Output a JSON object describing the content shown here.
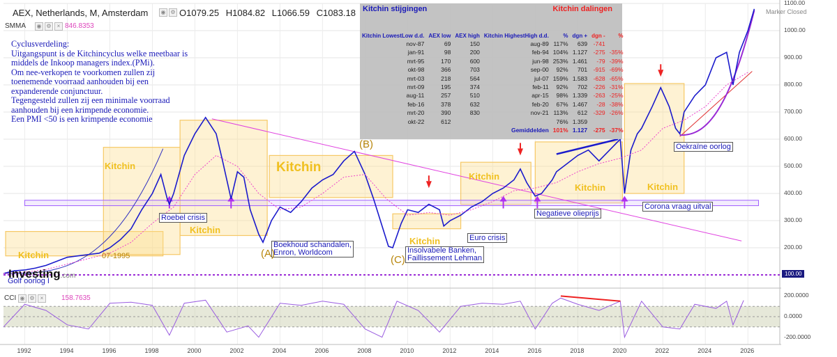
{
  "header": {
    "symbol": "AEX, Netherlands, M, Amsterdam",
    "open": "O1079.25",
    "high": "H1084.82",
    "low": "L1066.59",
    "close": "C1083.18"
  },
  "smma": {
    "label": "SMMA",
    "value": "846.8353"
  },
  "notes": [
    "Cyclusverdeling:",
    "Uitgangspunt is de Kitchincyclus welke meetbaar is",
    "middels de Inkoop managers index.(PMi).",
    "Om nee-verkopen te voorkomen zullen zij",
    "toenemende voorraad aanhouden bij een",
    "expanderende conjunctuur.",
    "Tegengesteld zullen zij een minimale voorraad",
    "aanhouden bij een krimpende economie.",
    "Een PMI <50 is een krimpende economie"
  ],
  "table": {
    "title_left": "Kitchin stijgingen",
    "title_right": "Kitchin dalingen",
    "headers": [
      "Kitchin LowestLow d.d.",
      "AEX low",
      "AEX high",
      "Kitchin HighestHigh d.d.",
      "%",
      "dgn +",
      "dgn -",
      "%"
    ],
    "rows": [
      [
        "nov-87",
        "69",
        "150",
        "aug-89",
        "117%",
        "639",
        "-741",
        ""
      ],
      [
        "jan-91",
        "98",
        "200",
        "feb-94",
        "104%",
        "1.127",
        "-275",
        "-35%"
      ],
      [
        "mrt-95",
        "170",
        "600",
        "jun-98",
        "253%",
        "1.461",
        "-79",
        "-39%"
      ],
      [
        "okt-98",
        "366",
        "703",
        "sep-00",
        "92%",
        "701",
        "-915",
        "-69%"
      ],
      [
        "mrt-03",
        "218",
        "564",
        "jul-07",
        "159%",
        "1.583",
        "-628",
        "-65%"
      ],
      [
        "mrt-09",
        "195",
        "374",
        "feb-11",
        "92%",
        "702",
        "-226",
        "-31%"
      ],
      [
        "aug-11",
        "257",
        "510",
        "apr-15",
        "98%",
        "1.339",
        "-263",
        "-25%"
      ],
      [
        "feb-16",
        "378",
        "632",
        "feb-20",
        "67%",
        "1.467",
        "-28",
        "-38%"
      ],
      [
        "mrt-20",
        "390",
        "830",
        "nov-21",
        "113%",
        "612",
        "-329",
        "-26%"
      ],
      [
        "okt-22",
        "612",
        "",
        "",
        "76%",
        "1.359",
        "",
        ""
      ]
    ],
    "avg": [
      "Gemiddelden",
      "101%",
      "1.127",
      "-275",
      "-37%"
    ]
  },
  "annotations": {
    "k1": "Kitchin",
    "k2": "Kitchin",
    "k3": "Kitchin",
    "k4": "Kitchin",
    "k5": "Kitchin",
    "k6": "Kitchin",
    "k7": "Kitchin",
    "k8": "Kitchin",
    "k9": "Kitchin",
    "roebel": "Roebel crisis",
    "boekhoud1": "Boekhoud schandalen,",
    "boekhoud2": "Enron, Worldcom",
    "insolv1": "Insolvabele Banken,",
    "insolv2": "Faillissement Lehman",
    "euro": "Euro crisis",
    "olie": "Negatieve olieprijs",
    "corona": "Corona vraag uitval",
    "oekraine": "Oekraïne oorlog",
    "golf": "Golf oorlog I",
    "date95": "07-1995",
    "A": "(A)",
    "B": "(B)",
    "C": "(C)"
  },
  "marker": "Marker Closed",
  "tag100": "100.00",
  "logo": "Investing",
  "logo_suffix": ".com",
  "cci": {
    "label": "CCI",
    "value": "158.7635"
  },
  "chart_data": {
    "type": "line",
    "title": "AEX, Netherlands, M, Amsterdam",
    "ylim": [
      100,
      1100
    ],
    "yticks": [
      "1100.00",
      "1000.00",
      "900.00",
      "800.00",
      "700.00",
      "600.00",
      "500.00",
      "400.00",
      "300.00",
      "200.00"
    ],
    "xticks": [
      "1992",
      "1994",
      "1996",
      "1998",
      "2000",
      "2002",
      "2004",
      "2006",
      "2008",
      "2010",
      "2012",
      "2014",
      "2016",
      "2018",
      "2020",
      "2022",
      "2024",
      "2026"
    ],
    "series": [
      {
        "name": "AEX",
        "color": "#1a1acc",
        "points": [
          [
            1991.0,
            105
          ],
          [
            1991.5,
            115
          ],
          [
            1992.0,
            118
          ],
          [
            1992.5,
            125
          ],
          [
            1993.0,
            135
          ],
          [
            1993.5,
            150
          ],
          [
            1994.0,
            165
          ],
          [
            1994.5,
            170
          ],
          [
            1995.0,
            175
          ],
          [
            1995.5,
            180
          ],
          [
            1996.0,
            200
          ],
          [
            1996.5,
            230
          ],
          [
            1997.0,
            270
          ],
          [
            1997.5,
            340
          ],
          [
            1998.0,
            400
          ],
          [
            1998.4,
            470
          ],
          [
            1998.7,
            380
          ],
          [
            1998.8,
            360
          ],
          [
            1999.0,
            400
          ],
          [
            1999.5,
            540
          ],
          [
            2000.0,
            620
          ],
          [
            2000.5,
            680
          ],
          [
            2001.0,
            620
          ],
          [
            2001.3,
            520
          ],
          [
            2001.7,
            380
          ],
          [
            2002.0,
            480
          ],
          [
            2002.3,
            460
          ],
          [
            2002.6,
            340
          ],
          [
            2003.0,
            250
          ],
          [
            2003.2,
            220
          ],
          [
            2003.6,
            300
          ],
          [
            2004.0,
            350
          ],
          [
            2004.5,
            330
          ],
          [
            2005.0,
            370
          ],
          [
            2005.5,
            420
          ],
          [
            2006.0,
            450
          ],
          [
            2006.5,
            470
          ],
          [
            2007.0,
            520
          ],
          [
            2007.5,
            555
          ],
          [
            2008.0,
            470
          ],
          [
            2008.4,
            380
          ],
          [
            2008.8,
            280
          ],
          [
            2009.1,
            205
          ],
          [
            2009.3,
            200
          ],
          [
            2009.7,
            290
          ],
          [
            2010.0,
            340
          ],
          [
            2010.5,
            330
          ],
          [
            2011.0,
            360
          ],
          [
            2011.5,
            340
          ],
          [
            2011.7,
            280
          ],
          [
            2012.0,
            300
          ],
          [
            2012.5,
            320
          ],
          [
            2013.0,
            350
          ],
          [
            2013.5,
            370
          ],
          [
            2014.0,
            400
          ],
          [
            2014.5,
            420
          ],
          [
            2015.0,
            450
          ],
          [
            2015.3,
            490
          ],
          [
            2015.6,
            440
          ],
          [
            2016.0,
            390
          ],
          [
            2016.3,
            400
          ],
          [
            2016.8,
            450
          ],
          [
            2017.0,
            480
          ],
          [
            2017.5,
            510
          ],
          [
            2018.0,
            540
          ],
          [
            2018.5,
            560
          ],
          [
            2019.0,
            520
          ],
          [
            2019.5,
            560
          ],
          [
            2020.0,
            600
          ],
          [
            2020.2,
            400
          ],
          [
            2020.5,
            560
          ],
          [
            2020.8,
            620
          ],
          [
            2021.0,
            640
          ],
          [
            2021.5,
            720
          ],
          [
            2021.9,
            790
          ],
          [
            2022.3,
            720
          ],
          [
            2022.6,
            640
          ],
          [
            2022.8,
            620
          ],
          [
            2023.0,
            700
          ],
          [
            2023.5,
            760
          ],
          [
            2024.0,
            800
          ],
          [
            2024.5,
            900
          ],
          [
            2025.0,
            920
          ],
          [
            2025.3,
            800
          ],
          [
            2025.6,
            920
          ],
          [
            2026.0,
            1000
          ],
          [
            2026.3,
            1080
          ]
        ]
      },
      {
        "name": "SMMA",
        "color": "#ee44cc",
        "points": [
          [
            1991.0,
            105
          ],
          [
            1992.0,
            110
          ],
          [
            1993.0,
            120
          ],
          [
            1994.0,
            140
          ],
          [
            1995.0,
            160
          ],
          [
            1996.0,
            180
          ],
          [
            1997.0,
            220
          ],
          [
            1998.0,
            290
          ],
          [
            1999.0,
            350
          ],
          [
            2000.0,
            470
          ],
          [
            2001.0,
            540
          ],
          [
            2002.0,
            500
          ],
          [
            2003.0,
            400
          ],
          [
            2004.0,
            340
          ],
          [
            2005.0,
            350
          ],
          [
            2006.0,
            400
          ],
          [
            2007.0,
            460
          ],
          [
            2008.0,
            470
          ],
          [
            2009.0,
            380
          ],
          [
            2010.0,
            320
          ],
          [
            2011.0,
            330
          ],
          [
            2012.0,
            320
          ],
          [
            2013.0,
            340
          ],
          [
            2014.0,
            370
          ],
          [
            2015.0,
            410
          ],
          [
            2016.0,
            420
          ],
          [
            2017.0,
            440
          ],
          [
            2018.0,
            480
          ],
          [
            2019.0,
            510
          ],
          [
            2020.0,
            530
          ],
          [
            2021.0,
            560
          ],
          [
            2022.0,
            640
          ],
          [
            2023.0,
            670
          ],
          [
            2024.0,
            720
          ],
          [
            2025.0,
            800
          ],
          [
            2026.0,
            846
          ]
        ]
      }
    ],
    "cci": {
      "ylim": [
        -250,
        250
      ],
      "yticks": [
        "200.0000",
        "0.0000",
        "-200.0000"
      ],
      "points": [
        [
          1991,
          -100
        ],
        [
          1992,
          120
        ],
        [
          1993,
          60
        ],
        [
          1994,
          -80
        ],
        [
          1995,
          -120
        ],
        [
          1996,
          130
        ],
        [
          1997,
          140
        ],
        [
          1998,
          110
        ],
        [
          1998.8,
          -180
        ],
        [
          1999.5,
          130
        ],
        [
          2000.5,
          160
        ],
        [
          2001.5,
          -150
        ],
        [
          2002.5,
          -90
        ],
        [
          2003.0,
          -200
        ],
        [
          2004.0,
          130
        ],
        [
          2005.0,
          110
        ],
        [
          2006.0,
          150
        ],
        [
          2007.0,
          120
        ],
        [
          2008.0,
          -120
        ],
        [
          2008.8,
          -200
        ],
        [
          2009.5,
          150
        ],
        [
          2010.5,
          60
        ],
        [
          2011.5,
          -150
        ],
        [
          2012.5,
          100
        ],
        [
          2013.5,
          130
        ],
        [
          2014.5,
          120
        ],
        [
          2015.3,
          150
        ],
        [
          2016.0,
          -120
        ],
        [
          2016.8,
          130
        ],
        [
          2017.2,
          180
        ],
        [
          2018.0,
          120
        ],
        [
          2019.0,
          60
        ],
        [
          2020.0,
          150
        ],
        [
          2020.2,
          -200
        ],
        [
          2021.0,
          150
        ],
        [
          2022.0,
          -100
        ],
        [
          2022.8,
          -120
        ],
        [
          2023.5,
          120
        ],
        [
          2024.5,
          80
        ],
        [
          2025.0,
          150
        ],
        [
          2025.3,
          -80
        ],
        [
          2025.8,
          158
        ]
      ]
    }
  }
}
